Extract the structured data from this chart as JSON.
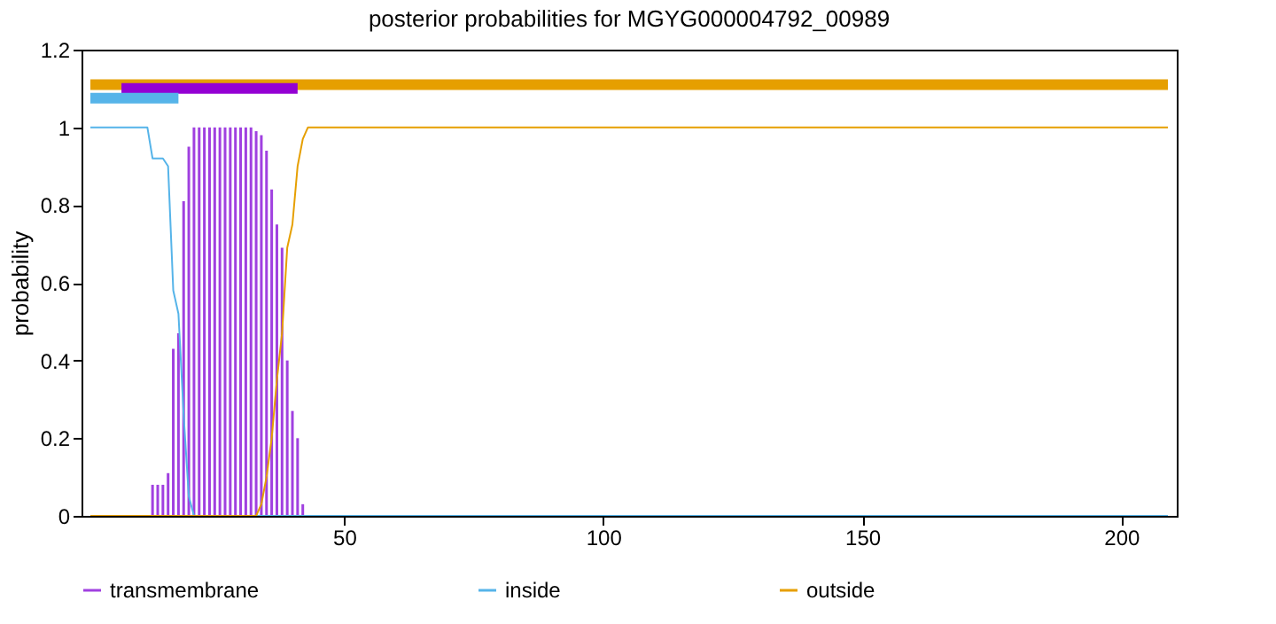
{
  "chart_data": {
    "type": "line",
    "title": "posterior probabilities for MGYG000004792_00989",
    "ylabel": "probability",
    "xlim": [
      1,
      209
    ],
    "ylim": [
      0,
      1.2
    ],
    "xticks": [
      50,
      100,
      150,
      200
    ],
    "yticks": [
      0,
      0.2,
      0.4,
      0.6,
      0.8,
      1,
      1.2
    ],
    "legend": "bottom",
    "grid": false,
    "series": [
      {
        "name": "transmembrane",
        "type": "bar",
        "color": "#a040e0",
        "x": [
          13,
          14,
          15,
          16,
          17,
          18,
          19,
          20,
          21,
          22,
          23,
          24,
          25,
          26,
          27,
          28,
          29,
          30,
          31,
          32,
          33,
          34,
          35,
          36,
          37,
          38,
          39,
          40,
          41,
          42
        ],
        "values": [
          0.08,
          0.08,
          0.08,
          0.11,
          0.43,
          0.47,
          0.81,
          0.95,
          1,
          1,
          1,
          1,
          1,
          1,
          1,
          1,
          1,
          1,
          1,
          1,
          0.99,
          0.98,
          0.94,
          0.84,
          0.75,
          0.69,
          0.4,
          0.27,
          0.2,
          0.03
        ]
      },
      {
        "name": "inside",
        "color": "#56b4e9",
        "x": [
          1,
          12,
          13,
          15,
          16,
          17,
          18,
          19,
          20,
          21,
          209
        ],
        "values": [
          1,
          1,
          0.92,
          0.92,
          0.9,
          0.58,
          0.52,
          0.26,
          0.05,
          0,
          0
        ]
      },
      {
        "name": "outside",
        "color": "#e69f00",
        "x": [
          1,
          33,
          34,
          35,
          36,
          37,
          38,
          39,
          40,
          41,
          42,
          43,
          209
        ],
        "values": [
          0,
          0,
          0.03,
          0.1,
          0.2,
          0.35,
          0.47,
          0.69,
          0.75,
          0.9,
          0.97,
          1,
          1
        ]
      },
      {
        "color": "#e69f00",
        "x": [
          1,
          209
        ],
        "values": [
          1.11,
          1.11
        ]
      },
      {
        "color": "#9400d3",
        "x": [
          7,
          41
        ],
        "values": [
          1.1,
          1.1
        ]
      },
      {
        "color": "#56b4e9",
        "x": [
          1,
          18
        ],
        "values": [
          1.075,
          1.075
        ]
      }
    ]
  }
}
